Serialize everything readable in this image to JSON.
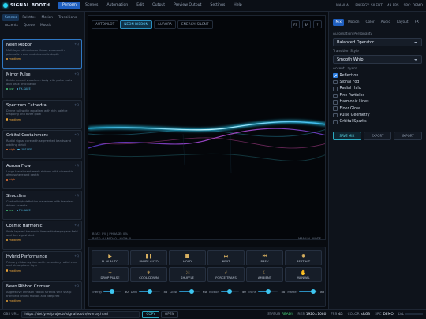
{
  "header": {
    "logo": "SIGNAL BOOTH",
    "tabs": [
      "Perform",
      "Scenes",
      "Automation",
      "Edit",
      "Output",
      "Preview Output",
      "Settings",
      "Help"
    ],
    "status": [
      "MANUAL",
      "ENERGY: SILENT",
      "43 FPS",
      "SRC: DEMO"
    ]
  },
  "left_panel": {
    "tabs": [
      "Scenes",
      "Palettes",
      "Motion",
      "Transitions",
      "Accents",
      "Queue",
      "Moods"
    ],
    "scenes": [
      {
        "name": "Neon Ribbon",
        "description": "Multilayered luminous ribbon waves with prismatic travel and cinematic depth",
        "shortcut": "+Q",
        "tags": [
          {
            "text": "medium",
            "color": "#e8a33a"
          }
        ]
      },
      {
        "name": "Mirror Pulse",
        "description": "Bold mirrored waveform body with pulse trails and peak articulation",
        "shortcut": "+Q",
        "tags": [
          {
            "text": "low",
            "color": "#49c97a"
          },
          {
            "text": "FX-SAFE",
            "color": "#4fb8e0"
          }
        ]
      },
      {
        "name": "Spectrum Cathedral",
        "description": "Dense full-width equalizer with rich palette mapping and three glow",
        "shortcut": "+Q",
        "tags": [
          {
            "text": "medium",
            "color": "#e8a33a"
          }
        ]
      },
      {
        "name": "Orbital Containment",
        "description": "Radial signal core with segmented bands and orbiting detail",
        "shortcut": "+Q",
        "tags": [
          {
            "text": "high",
            "color": "#f07a3a"
          },
          {
            "text": "FX-SAFE",
            "color": "#4fb8e0"
          }
        ]
      },
      {
        "name": "Aurora Flow",
        "description": "Large translucent mesh ribbons with cinematic atmosphere and depth",
        "shortcut": "+Q",
        "tags": [
          {
            "text": "high",
            "color": "#f07a3a"
          }
        ]
      },
      {
        "name": "Shockline",
        "description": "Central high-definition waveform with transient-driven accents",
        "shortcut": "+Q",
        "tags": [
          {
            "text": "low",
            "color": "#49c97a"
          },
          {
            "text": "FX-SAFE",
            "color": "#4fb8e0"
          }
        ]
      },
      {
        "name": "Cosmic Harmonic",
        "description": "Wide layered harmonic lines with deep space field and fine signal dust",
        "shortcut": "+Q",
        "tags": [
          {
            "text": "medium",
            "color": "#e8a33a"
          }
        ]
      },
      {
        "name": "Hybrid Performance",
        "description": "Primary ribbon system with secondary radial core and atmosphere layer",
        "shortcut": "+Q",
        "tags": [
          {
            "text": "medium",
            "color": "#e8a33a"
          }
        ]
      },
      {
        "name": "Neon Ribbon Crimson",
        "description": "Aggressive crimson ribbon strands with sharp transient driven motion and deep red",
        "shortcut": "+Q",
        "tags": [
          {
            "text": "medium",
            "color": "#e8a33a"
          }
        ]
      }
    ]
  },
  "stage": {
    "chips": [
      "AUTOPILOT",
      "NEON RIBBON",
      "AURORA",
      "ENERGY: SILENT"
    ],
    "tools": [
      "FS",
      "SA",
      "?"
    ],
    "readouts": [
      "BEAT: 0% | PHRASE: 0%",
      "BASS: 0 | MID: 0 | HIGH: 0"
    ],
    "mode": "MANUAL MODE"
  },
  "controls": {
    "buttons": [
      {
        "icon": "▶",
        "label": "PLAY AUTO"
      },
      {
        "icon": "❚❚",
        "label": "PAUSE AUTO"
      },
      {
        "icon": "■",
        "label": "HOLD"
      },
      {
        "icon": "⏭",
        "label": "NEXT"
      },
      {
        "icon": "⏮",
        "label": "PREV"
      },
      {
        "icon": "✸",
        "label": "BEAT HIT"
      },
      {
        "icon": "≈",
        "label": "DROP PULSE"
      },
      {
        "icon": "❄",
        "label": "COOL DOWN"
      },
      {
        "icon": "⤨",
        "label": "SHUFFLE"
      },
      {
        "icon": "⚡",
        "label": "FORCE TRANS"
      },
      {
        "icon": "☾",
        "label": "AMBIENT"
      },
      {
        "icon": "✋",
        "label": "MANUAL"
      }
    ],
    "sliders": [
      {
        "label": "Energy",
        "value": 50
      },
      {
        "label": "Drift",
        "value": 50
      },
      {
        "label": "Glow",
        "value": 60
      },
      {
        "label": "Motion",
        "value": 50
      },
      {
        "label": "Trans",
        "value": 50
      },
      {
        "label": "Master",
        "value": 80
      }
    ]
  },
  "right_panel": {
    "tabs": [
      "Mix",
      "Motion",
      "Color",
      "Audio",
      "Layout",
      "FX"
    ],
    "personality_label": "Automation Personality",
    "personality": "Balanced Operator",
    "transition_label": "Transition Style",
    "transition": "Smooth Whip",
    "layers_label": "Accent Layers",
    "layers": [
      {
        "label": "Reflection",
        "checked": true
      },
      {
        "label": "Signal Fog",
        "checked": false
      },
      {
        "label": "Radial Halo",
        "checked": false
      },
      {
        "label": "Fine Particles",
        "checked": false
      },
      {
        "label": "Harmonic Lines",
        "checked": false
      },
      {
        "label": "Floor Glow",
        "checked": false
      },
      {
        "label": "Pulse Geometry",
        "checked": false
      },
      {
        "label": "Orbital Sparks",
        "checked": false
      }
    ],
    "actions": [
      "SAVE MIX",
      "EXPORT",
      "IMPORT"
    ]
  },
  "footer": {
    "url_label": "OBS URL:",
    "url": "https://detfy.ee/projects/signalbooth/overlay.html",
    "buttons": [
      "COPY",
      "OPEN"
    ],
    "stats": [
      {
        "label": "STATUS",
        "value": "READY"
      },
      {
        "label": "RES",
        "value": "1920×1080"
      },
      {
        "label": "FPS",
        "value": "43"
      },
      {
        "label": "COLOR",
        "value": "sRGB"
      },
      {
        "label": "SRC",
        "value": "DEMO"
      }
    ],
    "level_label": "LVL"
  }
}
